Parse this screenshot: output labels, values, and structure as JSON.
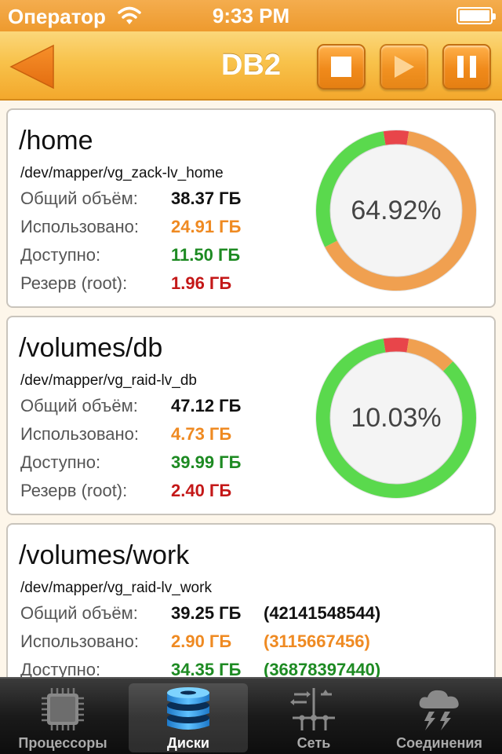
{
  "status_bar": {
    "carrier": "Оператор",
    "time": "9:33 PM"
  },
  "nav": {
    "title": "DB2"
  },
  "disks": [
    {
      "mount": "/home",
      "device": "/dev/mapper/vg_zack-lv_home",
      "rows": [
        {
          "label": "Общий объём:",
          "value": "38.37 ГБ"
        },
        {
          "label": "Использовано:",
          "value": "24.91 ГБ"
        },
        {
          "label": "Доступно:",
          "value": "11.50 ГБ"
        },
        {
          "label": "Резерв (root):",
          "value": "1.96 ГБ"
        }
      ],
      "percent_label": "64.92%",
      "gauge": {
        "used_fraction": 0.6492,
        "reserve_fraction": 0.051
      }
    },
    {
      "mount": "/volumes/db",
      "device": "/dev/mapper/vg_raid-lv_db",
      "rows": [
        {
          "label": "Общий объём:",
          "value": "47.12 ГБ"
        },
        {
          "label": "Использовано:",
          "value": "4.73 ГБ"
        },
        {
          "label": "Доступно:",
          "value": "39.99 ГБ"
        },
        {
          "label": "Резерв (root):",
          "value": "2.40 ГБ"
        }
      ],
      "percent_label": "10.03%",
      "gauge": {
        "used_fraction": 0.1003,
        "reserve_fraction": 0.051
      }
    },
    {
      "mount": "/volumes/work",
      "device": "/dev/mapper/vg_raid-lv_work",
      "rows": [
        {
          "label": "Общий объём:",
          "value": "39.25 ГБ",
          "raw": "(42141548544)"
        },
        {
          "label": "Использовано:",
          "value": "2.90 ГБ",
          "raw": "(3115667456)"
        },
        {
          "label": "Доступно:",
          "value": "34.35 ГБ",
          "raw": "(36878397440)"
        }
      ]
    }
  ],
  "colors": {
    "used": "#ef8a22",
    "available": "#1d8a22",
    "reserve": "#c41818",
    "gauge_free": "#5ad94d",
    "gauge_used": "#f0a050",
    "gauge_reserve": "#e8454a"
  },
  "tabs": [
    {
      "label": "Процессоры",
      "icon": "cpu-chip-icon",
      "selected": false
    },
    {
      "label": "Диски",
      "icon": "disk-stack-icon",
      "selected": true
    },
    {
      "label": "Сеть",
      "icon": "network-sliders-icon",
      "selected": false
    },
    {
      "label": "Соединения",
      "icon": "cloud-lightning-icon",
      "selected": false
    }
  ]
}
